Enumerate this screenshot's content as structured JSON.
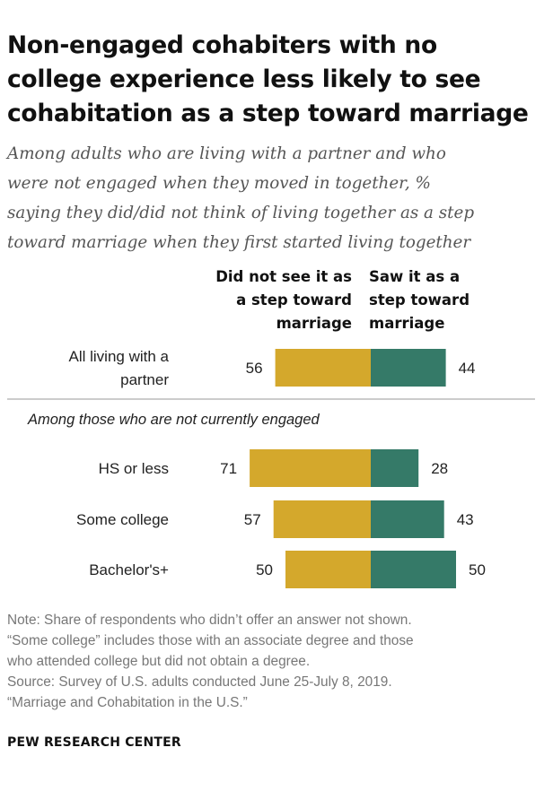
{
  "title_lines": [
    "Non-engaged cohabiters with no",
    "college experience less likely to see",
    "cohabitation as a step toward marriage"
  ],
  "subtitle_lines": [
    "Among adults who are living with a partner and who",
    "were not engaged when they moved in together, %",
    "saying they did/did not think of living together as a step",
    "toward marriage when they first started living together"
  ],
  "colors": {
    "did_not": "#D4A82C",
    "saw": "#357A68",
    "divider": "#999999"
  },
  "chart_data": {
    "type": "bar",
    "orientation": "diverging-horizontal",
    "series": [
      {
        "name": "Did not see it as a step toward marriage",
        "name_lines": [
          "Did not see it as",
          "a step toward",
          "marriage"
        ],
        "values": [
          56,
          71,
          57,
          50
        ]
      },
      {
        "name": "Saw it as a step toward marriage",
        "name_lines": [
          "Saw it as a",
          "step toward",
          "marriage"
        ],
        "values": [
          44,
          28,
          43,
          50
        ]
      }
    ],
    "categories": [
      "All living with a partner",
      "HS or less",
      "Some college",
      "Bachelor's+"
    ],
    "category_lines": [
      [
        "All living with a",
        "partner"
      ],
      [
        "HS or less"
      ],
      [
        "Some college"
      ],
      [
        "Bachelor's+"
      ]
    ],
    "group_label": "Among those who are not currently engaged"
  },
  "notes_lines": [
    "Note: Share of respondents who didn’t offer an answer not shown.",
    "“Some college” includes those with an associate degree and those",
    "who attended college but did not obtain a degree.",
    "Source: Survey of U.S. adults conducted June 25-July 8, 2019.",
    "“Marriage and Cohabitation in the U.S.”"
  ],
  "brand": "PEW RESEARCH CENTER"
}
